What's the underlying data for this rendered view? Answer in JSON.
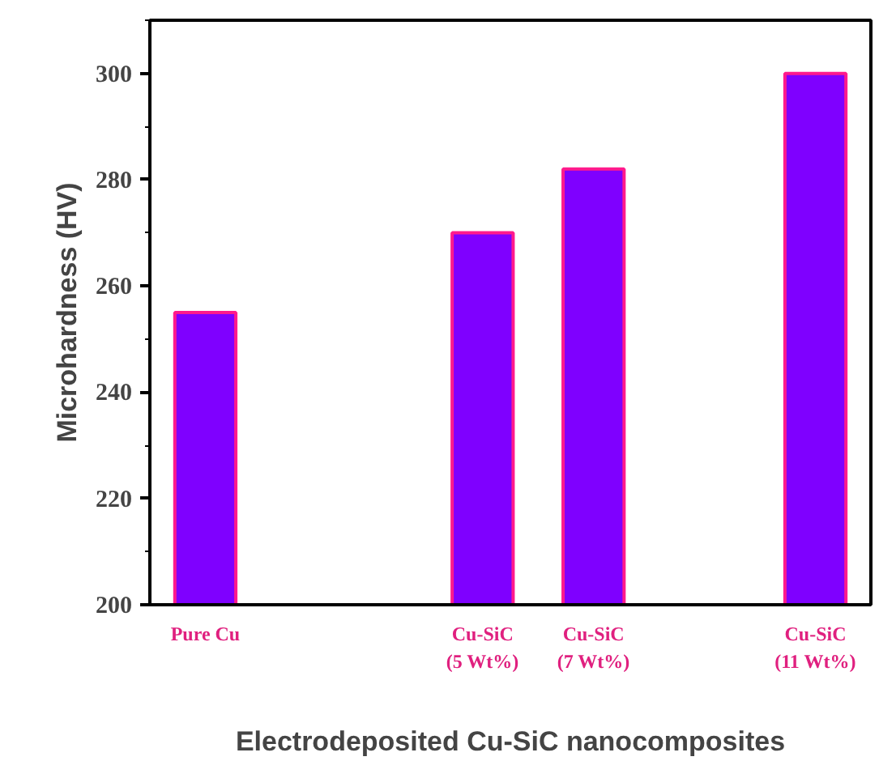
{
  "chart_data": {
    "type": "bar",
    "xlabel": "Electrodeposited Cu-SiC nanocomposites",
    "ylabel": "Microhardness (HV)",
    "x": [
      0,
      5,
      7,
      11
    ],
    "values": [
      255,
      270,
      282,
      300
    ],
    "color": "#7f00ff",
    "xlim": [
      -1,
      12
    ],
    "xticks": [
      {
        "value": 0,
        "label": "Pure Cu"
      },
      {
        "value": 5,
        "label": "Cu-SiC\n(5 Wt%)"
      },
      {
        "value": 7,
        "label": "Cu-SiC\n(7 Wt%)"
      },
      {
        "value": 11,
        "label": "Cu-SiC\n(11 Wt%)"
      }
    ],
    "ylim": [
      200,
      310
    ],
    "yticks": [
      200,
      220,
      240,
      260,
      280,
      300
    ],
    "grid": false
  }
}
